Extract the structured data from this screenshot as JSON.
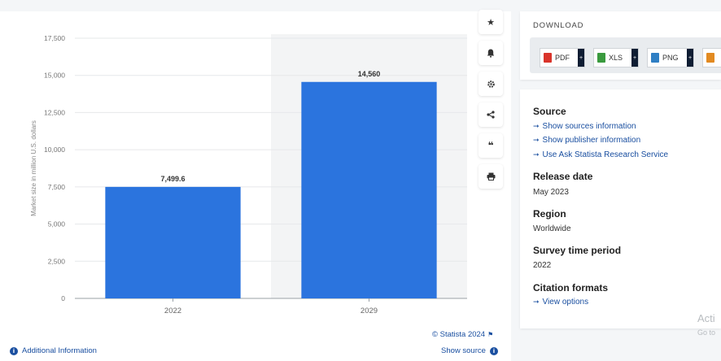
{
  "chart_data": {
    "type": "bar",
    "categories": [
      "2022",
      "2029"
    ],
    "values": [
      7499.6,
      14560
    ],
    "value_labels": [
      "7,499.6",
      "14,560"
    ],
    "ylabel": "Market size in million U.S. dollars",
    "ylim": [
      0,
      17500
    ],
    "yticks": [
      0,
      2500,
      5000,
      7500,
      10000,
      12500,
      15000,
      17500
    ],
    "ytick_labels": [
      "0",
      "2,500",
      "5,000",
      "7,500",
      "10,000",
      "12,500",
      "15,000",
      "17,500"
    ],
    "bar_color": "#2b74de",
    "forecast_shade_color": "#f3f4f5",
    "grid": true
  },
  "tools": [
    "star-icon",
    "bell-icon",
    "gear-icon",
    "share-icon",
    "quote-icon",
    "print-icon"
  ],
  "footer": {
    "credit": "© Statista 2024",
    "additional_info": "Additional Information",
    "show_source": "Show source"
  },
  "download": {
    "title": "DOWNLOAD",
    "buttons": [
      {
        "label": "PDF",
        "color": "#d9342b"
      },
      {
        "label": "XLS",
        "color": "#3a9a3e"
      },
      {
        "label": "PNG",
        "color": "#2f7fc4"
      },
      {
        "label": "",
        "color": "#e28a21"
      }
    ]
  },
  "source_panel": {
    "source_heading": "Source",
    "links": [
      "Show sources information",
      "Show publisher information",
      "Use Ask Statista Research Service"
    ],
    "release_heading": "Release date",
    "release_value": "May 2023",
    "region_heading": "Region",
    "region_value": "Worldwide",
    "survey_heading": "Survey time period",
    "survey_value": "2022",
    "citation_heading": "Citation formats",
    "citation_link": "View options"
  },
  "watermark": {
    "line1": "Acti",
    "line2": "Go to"
  }
}
